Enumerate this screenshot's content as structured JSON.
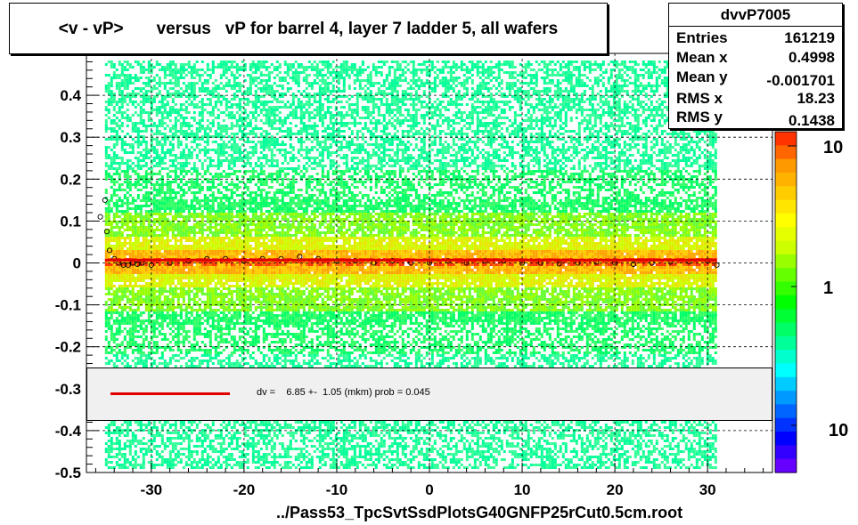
{
  "chart_data": {
    "type": "heatmap",
    "title": "<v - vP>       versus   vP for barrel 4, layer 7 ladder 5, all wafers",
    "xlabel": "",
    "ylabel": "",
    "xlim": [
      -37,
      37
    ],
    "ylim": [
      -0.5,
      0.5
    ],
    "x_ticks": [
      "-30",
      "-20",
      "-10",
      "0",
      "10",
      "20",
      "30"
    ],
    "x_tick_values": [
      -30,
      -20,
      -10,
      0,
      10,
      20,
      30
    ],
    "y_ticks": [
      "0.4",
      "0.3",
      "0.2",
      "0.1",
      "0",
      "-0.1",
      "-0.2",
      "-0.3",
      "-0.4",
      "-0.5"
    ],
    "y_tick_values": [
      0.4,
      0.3,
      0.2,
      0.1,
      0,
      -0.1,
      -0.2,
      -0.3,
      -0.4,
      -0.5
    ],
    "grid": true,
    "data_x_range": [
      -35,
      31
    ],
    "colorbar": {
      "scale": "log",
      "labels": [
        "10",
        "1",
        "10"
      ]
    },
    "profile_points": [
      [
        -35.5,
        0.11
      ],
      [
        -35.0,
        0.15
      ],
      [
        -34.8,
        0.075
      ],
      [
        -34.5,
        0.03
      ],
      [
        -34.0,
        0.01
      ],
      [
        -33.5,
        0.0
      ],
      [
        -33.0,
        -0.005
      ],
      [
        -32.5,
        -0.005
      ],
      [
        -32.0,
        0.0
      ],
      [
        -31.5,
        -0.003
      ],
      [
        -31.0,
        0.0
      ],
      [
        -30.0,
        -0.005
      ],
      [
        -28.0,
        0.0
      ],
      [
        -26.0,
        0.005
      ],
      [
        -24.0,
        0.01
      ],
      [
        -22.0,
        0.01
      ],
      [
        -20.0,
        0.005
      ],
      [
        -18.0,
        0.01
      ],
      [
        -16.0,
        0.01
      ],
      [
        -14.0,
        0.015
      ],
      [
        -12.0,
        0.01
      ],
      [
        -10.0,
        0.005
      ],
      [
        -8.0,
        0.005
      ],
      [
        -6.0,
        0.0
      ],
      [
        -4.0,
        0.005
      ],
      [
        -2.0,
        0.0
      ],
      [
        0.0,
        0.0
      ],
      [
        2.0,
        0.005
      ],
      [
        4.0,
        0.0
      ],
      [
        6.0,
        0.005
      ],
      [
        8.0,
        0.005
      ],
      [
        10.0,
        0.0
      ],
      [
        12.0,
        0.0
      ],
      [
        14.0,
        -0.002
      ],
      [
        16.0,
        0.0
      ],
      [
        18.0,
        0.002
      ],
      [
        20.0,
        0.0
      ],
      [
        22.0,
        -0.003
      ],
      [
        24.0,
        0.0
      ],
      [
        26.0,
        0.002
      ],
      [
        28.0,
        0.003
      ],
      [
        30.0,
        0.005
      ],
      [
        31.0,
        -0.005
      ]
    ],
    "fit": {
      "type": "line",
      "color": "#e00000",
      "x": [
        -35,
        31
      ],
      "y": [
        0.00685,
        0.00685
      ]
    }
  },
  "histogram": {
    "name": "dvvP7005",
    "stats": [
      {
        "key": "Entries",
        "value": "161219"
      },
      {
        "key": "Mean x",
        "value": "0.4998"
      },
      {
        "key": "Mean y",
        "value": "-0.001701"
      },
      {
        "key": "RMS x",
        "value": "18.23"
      },
      {
        "key": "RMS y",
        "value": "0.1438"
      }
    ]
  },
  "legend": {
    "text": "dv =    6.85 +-  1.05 (mkm) prob = 0.045",
    "line_color": "#e00000"
  },
  "footer": "../Pass53_TpcSvtSsdPlotsG40GNFP25rCut0.5cm.root"
}
